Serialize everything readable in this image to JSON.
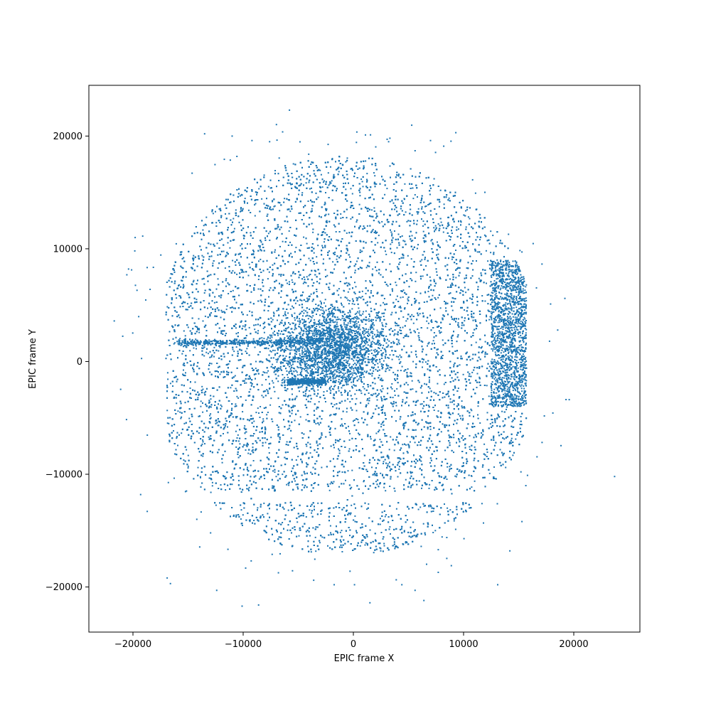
{
  "chart_data": {
    "type": "scatter",
    "title": "",
    "xlabel": "EPIC frame X",
    "ylabel": "EPIC frame Y",
    "xlim": [
      -24000,
      26000
    ],
    "ylim": [
      -24000,
      24500
    ],
    "x_ticks": [
      {
        "value": -20000,
        "label": "−20000"
      },
      {
        "value": -10000,
        "label": "−10000"
      },
      {
        "value": 0,
        "label": "0"
      },
      {
        "value": 10000,
        "label": "10000"
      },
      {
        "value": 20000,
        "label": "20000"
      }
    ],
    "y_ticks": [
      {
        "value": -20000,
        "label": "−20000"
      },
      {
        "value": -10000,
        "label": "−10000"
      },
      {
        "value": 0,
        "label": "0"
      },
      {
        "value": 10000,
        "label": "10000"
      },
      {
        "value": 20000,
        "label": "20000"
      }
    ],
    "grid": false,
    "marker_color": "#1f77b4",
    "distribution": {
      "description_note": "dense field of events; values are estimated density regions",
      "main_field": {
        "x_range": [
          -17000,
          15700
        ],
        "y_range": [
          -17000,
          18200
        ],
        "circle_center": [
          -800,
          500
        ],
        "circle_radius": 17700
      },
      "core_cluster": {
        "x": -2000,
        "y": 1200,
        "spread_x": 2500,
        "spread_y": 1800
      },
      "streaks": [
        {
          "x_range": [
            -16000,
            -3000
          ],
          "y": 1700
        },
        {
          "x_range": [
            -6000,
            -2500
          ],
          "y": -1800
        }
      ],
      "chip_gaps_y": [
        -11500,
        -12500
      ],
      "chip_gap_x": -2500
    },
    "outliers": [
      {
        "x": -5800,
        "y": 22300
      },
      {
        "x": -13500,
        "y": 20200
      },
      {
        "x": -11000,
        "y": 20000
      },
      {
        "x": -9200,
        "y": 19600
      },
      {
        "x": -7600,
        "y": 19500
      },
      {
        "x": 1100,
        "y": 20100
      },
      {
        "x": 3200,
        "y": 19500
      },
      {
        "x": 5600,
        "y": 18700
      },
      {
        "x": 7000,
        "y": 19600
      },
      {
        "x": 9300,
        "y": 20300
      },
      {
        "x": 8200,
        "y": 19100
      },
      {
        "x": 17900,
        "y": 5100
      },
      {
        "x": 17800,
        "y": 1800
      },
      {
        "x": 23700,
        "y": -10200
      },
      {
        "x": -21700,
        "y": 3600
      },
      {
        "x": -20400,
        "y": 8200
      },
      {
        "x": -19800,
        "y": 11000
      },
      {
        "x": -19300,
        "y": -11800
      },
      {
        "x": -18700,
        "y": -13300
      },
      {
        "x": -10100,
        "y": -21700
      },
      {
        "x": -8600,
        "y": -21600
      },
      {
        "x": -12400,
        "y": -20300
      },
      {
        "x": 1500,
        "y": -21400
      },
      {
        "x": 6400,
        "y": -21200
      },
      {
        "x": 5600,
        "y": -20300
      },
      {
        "x": 13100,
        "y": -19800
      },
      {
        "x": -16600,
        "y": -19700
      },
      {
        "x": -16900,
        "y": -19200
      },
      {
        "x": -3600,
        "y": -19400
      },
      {
        "x": 100,
        "y": -19800
      },
      {
        "x": -300,
        "y": -18600
      },
      {
        "x": 4400,
        "y": -19800
      },
      {
        "x": 7700,
        "y": -18700
      },
      {
        "x": 14200,
        "y": -16800
      },
      {
        "x": 15300,
        "y": -14200
      },
      {
        "x": 15800,
        "y": -10100
      }
    ]
  }
}
